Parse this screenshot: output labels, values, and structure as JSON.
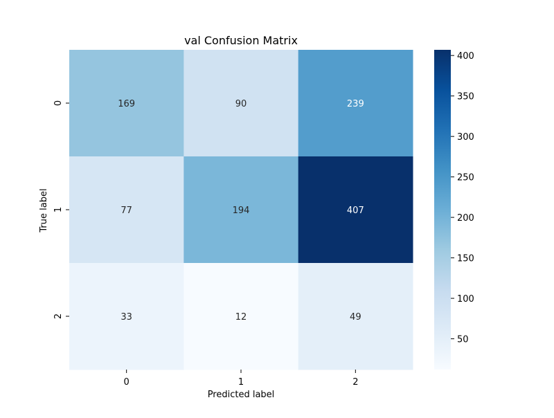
{
  "chart_data": {
    "type": "heatmap",
    "title": "val Confusion Matrix",
    "xlabel": "Predicted label",
    "ylabel": "True label",
    "x_categories": [
      "0",
      "1",
      "2"
    ],
    "y_categories": [
      "0",
      "1",
      "2"
    ],
    "matrix": [
      [
        169,
        90,
        239
      ],
      [
        77,
        194,
        407
      ],
      [
        33,
        12,
        49
      ]
    ],
    "colormap": "Blues",
    "colorbar": {
      "range": [
        12,
        407
      ],
      "ticks": [
        50,
        100,
        150,
        200,
        250,
        300,
        350,
        400
      ]
    },
    "grid": false,
    "legend": "colorbar-right"
  }
}
